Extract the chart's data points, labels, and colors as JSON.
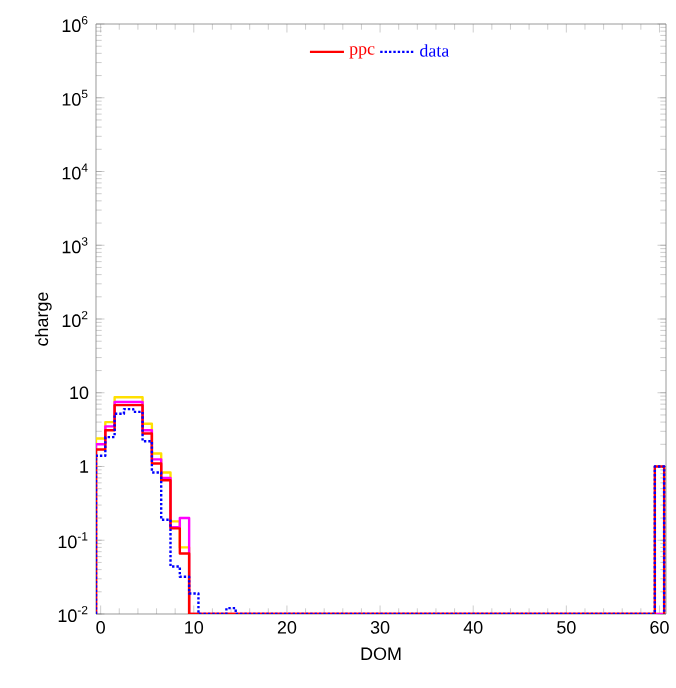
{
  "chart_data": {
    "type": "histogram",
    "xlabel": "DOM",
    "ylabel": "charge",
    "log": "y",
    "legend": "top",
    "line_style": "solid",
    "bins": [
      -0.5,
      0.5,
      1.5,
      2.5,
      3.5,
      4.5,
      5.5,
      6.5,
      7.5,
      8.5,
      9.5,
      10.5,
      11.5,
      12.5,
      13.5,
      14.5,
      15.5,
      16.5,
      17.5,
      18.5,
      19.5,
      20.5,
      21.5,
      22.5,
      23.5,
      24.5,
      25.5,
      26.5,
      27.5,
      28.5,
      29.5,
      30.5,
      31.5,
      32.5,
      33.5,
      34.5,
      35.5,
      36.5,
      37.5,
      38.5,
      39.5,
      40.5,
      41.5,
      42.5,
      43.5,
      44.5,
      45.5,
      46.5,
      47.5,
      48.5,
      49.5,
      50.5,
      51.5,
      52.5,
      53.5,
      54.5,
      55.5,
      56.5,
      57.5,
      58.5,
      59.5,
      60.5
    ],
    "series": [
      {
        "color": "#ffe000",
        "values": [
          2.4,
          4.0,
          8.7,
          8.7,
          8.7,
          3.8,
          1.5,
          0.83,
          0.18,
          0.08,
          null,
          null,
          null,
          null,
          null,
          null,
          null,
          null,
          null,
          null,
          null,
          null,
          null,
          null,
          null,
          null,
          null,
          null,
          null,
          null,
          null,
          null,
          null,
          null,
          null,
          null,
          null,
          null,
          null,
          null,
          null,
          null,
          null,
          null,
          null,
          null,
          null,
          null,
          null,
          null,
          null,
          null,
          null,
          null,
          null,
          null,
          null,
          null,
          null,
          null,
          null
        ]
      },
      {
        "color": "#ff00ff",
        "values": [
          2.0,
          3.5,
          7.5,
          7.5,
          7.5,
          3.1,
          1.25,
          0.7,
          0.15,
          0.2,
          null,
          null,
          null,
          null,
          null,
          null,
          null,
          null,
          null,
          null,
          null,
          null,
          null,
          null,
          null,
          null,
          null,
          null,
          null,
          null,
          null,
          null,
          null,
          null,
          null,
          null,
          null,
          null,
          null,
          null,
          null,
          null,
          null,
          null,
          null,
          null,
          null,
          null,
          null,
          null,
          null,
          null,
          null,
          null,
          null,
          null,
          null,
          null,
          null,
          null,
          null
        ]
      },
      {
        "name": "ppc",
        "color": "#ff0000",
        "line_style": "solid",
        "values": [
          1.7,
          3.1,
          6.8,
          6.8,
          6.8,
          2.8,
          1.1,
          0.65,
          0.145,
          0.066,
          null,
          null,
          null,
          null,
          null,
          null,
          null,
          null,
          null,
          null,
          null,
          null,
          null,
          null,
          null,
          null,
          null,
          null,
          null,
          null,
          null,
          null,
          null,
          null,
          null,
          null,
          null,
          null,
          null,
          null,
          null,
          null,
          null,
          null,
          null,
          null,
          null,
          null,
          null,
          null,
          null,
          null,
          null,
          null,
          null,
          null,
          null,
          null,
          null,
          null,
          1
        ]
      },
      {
        "name": "data",
        "color": "#0000ff",
        "line_style": "dotted",
        "values": [
          1.4,
          2.5,
          5.2,
          6.0,
          5.5,
          2.2,
          0.83,
          0.19,
          0.044,
          0.032,
          0.019,
          null,
          null,
          null,
          0.012,
          null,
          null,
          null,
          null,
          null,
          null,
          null,
          null,
          null,
          null,
          null,
          null,
          null,
          null,
          null,
          null,
          null,
          null,
          null,
          null,
          null,
          null,
          null,
          null,
          null,
          null,
          null,
          null,
          null,
          null,
          null,
          null,
          null,
          null,
          null,
          null,
          null,
          null,
          null,
          null,
          null,
          null,
          null,
          null,
          null,
          1
        ]
      }
    ],
    "xlim": [
      -0.5,
      60.7
    ],
    "ylim": [
      0.01,
      1000000
    ],
    "xticks": [
      0,
      10,
      20,
      30,
      40,
      50,
      60
    ],
    "yticks": [
      {
        "value": 0.01,
        "label": "10$^{-2}$"
      },
      {
        "value": 0.1,
        "label": "10$^{-1}$"
      },
      1,
      10,
      {
        "value": 100,
        "label": "10$^{2}$"
      },
      {
        "value": 1000,
        "label": "10$^{3}$"
      },
      {
        "value": 10000,
        "label": "10$^{4}$"
      },
      {
        "value": 100000,
        "label": "10$^{5}$"
      },
      {
        "value": 1000000,
        "label": "10$^{6}$"
      }
    ]
  }
}
